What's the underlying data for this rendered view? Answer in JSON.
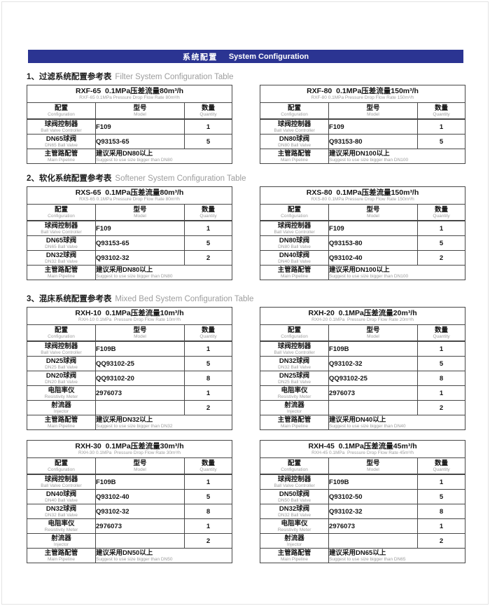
{
  "header": {
    "title_zh": "系统配置",
    "title_en": "System Configuration"
  },
  "colors": {
    "bar_blue": "#2b3492",
    "table_line": "#474747",
    "muted_gray": "#9d9d9d"
  },
  "table_columns": [
    {
      "zh": "配置",
      "en": "Configuration"
    },
    {
      "zh": "型号",
      "en": "Model"
    },
    {
      "zh": "数量",
      "en": "Quantity"
    }
  ],
  "sections": [
    {
      "index": "1、",
      "heading_zh": "过滤系统配置参考表",
      "heading_en": "Filter System Configuration Table",
      "tables": [
        {
          "title_zh": "RXF-65  0.1MPa压差流量80m³/h",
          "subtitle_en": "RXF-65 0.1MPa Pressure Drop Flow Rate 80m³/h",
          "rows": [
            {
              "zh": "球阀控制器",
              "en": "Ball Valve Controller",
              "model": "F109",
              "qty": "1"
            },
            {
              "zh": "DN65球阀",
              "en": "DN65 Ball Valve",
              "model": "Q93153-65",
              "qty": "5"
            },
            {
              "zh": "主管路配管",
              "en": "Main Pipeline",
              "model_zh": "建议采用DN80以上",
              "model_en": "Suggest to use size bigger than DN80"
            }
          ]
        },
        {
          "title_zh": "RXF-80  0.1MPa压差流量150m³/h",
          "subtitle_en": "RXF-80 0.1MPa Pressure Drop Flow Rate 150m³/h",
          "rows": [
            {
              "zh": "球阀控制器",
              "en": "Ball Valve Controller",
              "model": "F109",
              "qty": "1"
            },
            {
              "zh": "DN80球阀",
              "en": "DN80 Ball Valve",
              "model": "Q93153-80",
              "qty": "5"
            },
            {
              "zh": "主管路配管",
              "en": "Main Pipeline",
              "model_zh": "建议采用DN100以上",
              "model_en": "Suggest to use size bigger than DN100"
            }
          ]
        }
      ]
    },
    {
      "index": "2、",
      "heading_zh": "软化系统配置参考表",
      "heading_en": "Softener System Configuration Table",
      "tables": [
        {
          "title_zh": "RXS-65  0.1MPa压差流量80m³/h",
          "subtitle_en": "RXS-65 0.1MPa Pressure Drop Flow Rate 80m³/h",
          "rows": [
            {
              "zh": "球阀控制器",
              "en": "Ball Valve Controller",
              "model": "F109",
              "qty": "1"
            },
            {
              "zh": "DN65球阀",
              "en": "DN65 Ball Valve",
              "model": "Q93153-65",
              "qty": "5"
            },
            {
              "zh": "DN32球阀",
              "en": "DN32 Ball Valve",
              "model": "Q93102-32",
              "qty": "2"
            },
            {
              "zh": "主管路配管",
              "en": "Main Pipeline",
              "model_zh": "建议采用DN80以上",
              "model_en": "Suggest to use size bigger than DN80"
            }
          ]
        },
        {
          "title_zh": "RXS-80  0.1MPa压差流量150m³/h",
          "subtitle_en": "RXS-80 0.1MPa Pressure Drop Flow Rate 150m³/h",
          "rows": [
            {
              "zh": "球阀控制器",
              "en": "Ball Valve Controller",
              "model": "F109",
              "qty": "1"
            },
            {
              "zh": "DN80球阀",
              "en": "DN80 Ball Valve",
              "model": "Q93153-80",
              "qty": "5"
            },
            {
              "zh": "DN40球阀",
              "en": "DN40 Ball Valve",
              "model": "Q93102-40",
              "qty": "2"
            },
            {
              "zh": "主管路配管",
              "en": "Main Pipeline",
              "model_zh": "建议采用DN100以上",
              "model_en": "Suggest to use size bigger than DN100"
            }
          ]
        }
      ]
    },
    {
      "index": "3、",
      "heading_zh": "混床系统配置参考表",
      "heading_en": "Mixed Bed System Configuration Table",
      "tables": [
        {
          "title_zh": "RXH-10  0.1MPa压差流量10m³/h",
          "subtitle_en": "RXH-10 0.1MPa  Pressure Drop Flow Rate 10m³/h",
          "rows": [
            {
              "zh": "球阀控制器",
              "en": "Ball Valve Controller",
              "model": "F109B",
              "qty": "1"
            },
            {
              "zh": "DN25球阀",
              "en": "DN25 Ball Valve",
              "model": "QQ93102-25",
              "qty": "5"
            },
            {
              "zh": "DN20球阀",
              "en": "DN20 Ball Valve",
              "model": "QQ93102-20",
              "qty": "8"
            },
            {
              "zh": "电阻率仪",
              "en": "Resistivity Meter",
              "model": "2976073",
              "qty": "1"
            },
            {
              "zh": "射流器",
              "en": "Injector",
              "model": "",
              "qty": "2"
            },
            {
              "zh": "主管路配管",
              "en": "Main Pipeline",
              "model_zh": "建议采用DN32以上",
              "model_en": "Suggest to use size bigger than DN32"
            }
          ]
        },
        {
          "title_zh": "RXH-20  0.1MPa压差流量20m³/h",
          "subtitle_en": "RXH-20 0.1MPa  Pressure Drop Flow Rate 20m³/h",
          "rows": [
            {
              "zh": "球阀控制器",
              "en": "Ball Valve Controller",
              "model": "F109B",
              "qty": "1"
            },
            {
              "zh": "DN32球阀",
              "en": "DN32 Ball Valve",
              "model": "Q93102-32",
              "qty": "5"
            },
            {
              "zh": "DN25球阀",
              "en": "DN25 Ball Valve",
              "model": "QQ93102-25",
              "qty": "8"
            },
            {
              "zh": "电阻率仪",
              "en": "Resistivity Meter",
              "model": "2976073",
              "qty": "1"
            },
            {
              "zh": "射流器",
              "en": "Injector",
              "model": "",
              "qty": "2"
            },
            {
              "zh": "主管路配管",
              "en": "Main Pipeline",
              "model_zh": "建议采用DN40以上",
              "model_en": "Suggest to use size bigger than DN40"
            }
          ]
        },
        {
          "title_zh": "RXH-30  0.1MPa压差流量30m³/h",
          "subtitle_en": "RXH-30 0.1MPa  Pressure Drop Flow Rate 30m³/h",
          "rows": [
            {
              "zh": "球阀控制器",
              "en": "Ball Valve Controller",
              "model": "F109B",
              "qty": "1"
            },
            {
              "zh": "DN40球阀",
              "en": "DN40 Ball Valve",
              "model": "Q93102-40",
              "qty": "5"
            },
            {
              "zh": "DN32球阀",
              "en": "DN32 Ball Valve",
              "model": "Q93102-32",
              "qty": "8"
            },
            {
              "zh": "电阻率仪",
              "en": "Resistivity Meter",
              "model": "2976073",
              "qty": "1"
            },
            {
              "zh": "射流器",
              "en": "Injector",
              "model": "",
              "qty": "2"
            },
            {
              "zh": "主管路配管",
              "en": "Main Pipeline",
              "model_zh": "建议采用DN50以上",
              "model_en": "Suggest to use size bigger than DN50"
            }
          ]
        },
        {
          "title_zh": "RXH-45  0.1MPa压差流量45m³/h",
          "subtitle_en": "RXH-45 0.1MPa  Pressure Drop Flow Rate 45m³/h",
          "rows": [
            {
              "zh": "球阀控制器",
              "en": "Ball Valve Controller",
              "model": "F109B",
              "qty": "1"
            },
            {
              "zh": "DN50球阀",
              "en": "DN50 Ball Valve",
              "model": "Q93102-50",
              "qty": "5"
            },
            {
              "zh": "DN32球阀",
              "en": "DN32 Ball Valve",
              "model": "Q93102-32",
              "qty": "8"
            },
            {
              "zh": "电阻率仪",
              "en": "Resistivity Meter",
              "model": "2976073",
              "qty": "1"
            },
            {
              "zh": "射流器",
              "en": "Injector",
              "model": "",
              "qty": "2"
            },
            {
              "zh": "主管路配管",
              "en": "Main Pipeline",
              "model_zh": "建议采用DN65以上",
              "model_en": "Suggest to use size bigger than DN65"
            }
          ]
        }
      ]
    }
  ]
}
